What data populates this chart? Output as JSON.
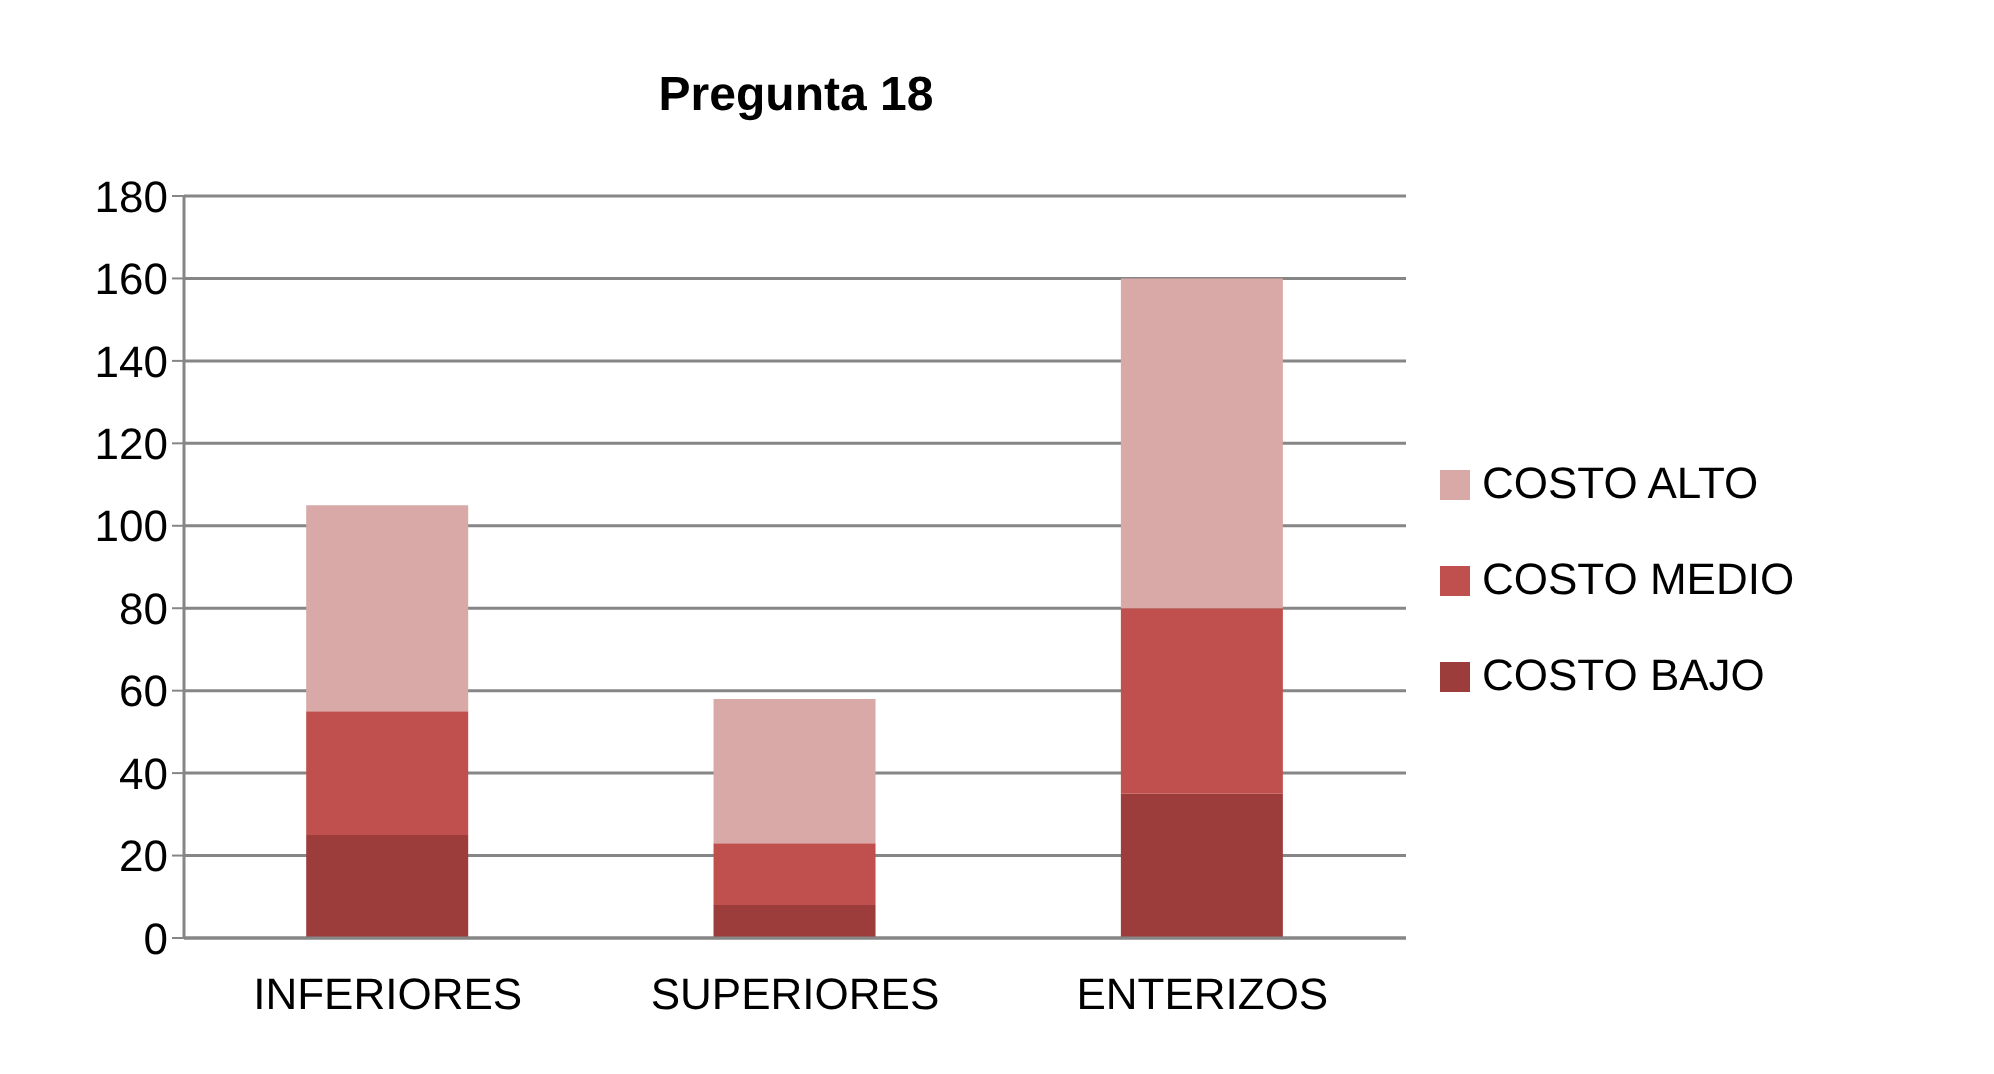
{
  "chart_data": {
    "type": "bar",
    "title": "Pregunta 18",
    "categories": [
      "INFERIORES",
      "SUPERIORES",
      "ENTERIZOS"
    ],
    "stacked": true,
    "series": [
      {
        "name": "COSTO BAJO",
        "color": "#9c3d3b",
        "values": [
          25,
          8,
          35
        ]
      },
      {
        "name": "COSTO MEDIO",
        "color": "#c0504d",
        "values": [
          30,
          15,
          45
        ]
      },
      {
        "name": "COSTO ALTO",
        "color": "#d9a9a8",
        "values": [
          50,
          35,
          80
        ]
      }
    ],
    "ylim": [
      0,
      180
    ],
    "yticks": [
      0,
      20,
      40,
      60,
      80,
      100,
      120,
      140,
      160,
      180
    ],
    "grid": "y",
    "legend": "right"
  }
}
